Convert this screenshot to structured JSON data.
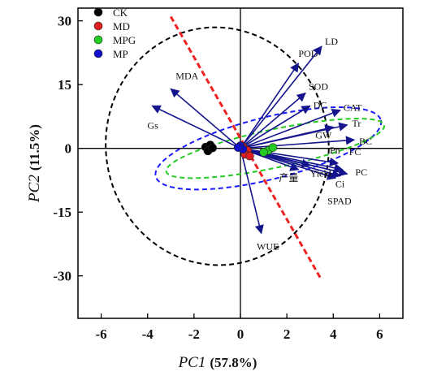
{
  "chart_data": {
    "type": "scatter",
    "subtype": "PCA biplot",
    "xlabel": "PC1",
    "xlabel_pct": "(57.8%)",
    "ylabel": "PC2",
    "ylabel_pct": "(11.5%)",
    "xlim": [
      -7,
      7
    ],
    "ylim": [
      -40,
      33
    ],
    "xticks": [
      -6,
      -4,
      -2,
      0,
      2,
      4,
      6
    ],
    "yticks": [
      30,
      15,
      0,
      -15,
      -30
    ],
    "legend_position": "top-left",
    "series": [
      {
        "name": "CK",
        "color": "#000000",
        "points": [
          [
            -1.5,
            0.3
          ],
          [
            -1.3,
            0.8
          ],
          [
            -1.4,
            -0.6
          ],
          [
            -1.2,
            0.1
          ]
        ]
      },
      {
        "name": "MD",
        "color": "#e02020",
        "points": [
          [
            0.1,
            0.4
          ],
          [
            0.3,
            -0.5
          ],
          [
            0.2,
            -1.4
          ],
          [
            0.4,
            -1.8
          ]
        ]
      },
      {
        "name": "MPG",
        "color": "#22cc22",
        "points": [
          [
            1.2,
            -0.5
          ],
          [
            1.4,
            0.2
          ],
          [
            1.0,
            -0.9
          ]
        ]
      },
      {
        "name": "MP",
        "color": "#1010cc",
        "points": [
          [
            0.0,
            0.6
          ],
          [
            0.1,
            -0.2
          ],
          [
            -0.1,
            0.2
          ]
        ]
      }
    ],
    "vectors": [
      {
        "name": "POD",
        "x": 2.5,
        "y": 20
      },
      {
        "name": "LD",
        "x": 3.5,
        "y": 24
      },
      {
        "name": "SOD",
        "x": 2.8,
        "y": 13
      },
      {
        "name": "DC",
        "x": 3.0,
        "y": 10
      },
      {
        "name": "CAT",
        "x": 4.3,
        "y": 9
      },
      {
        "name": "Tr",
        "x": 4.6,
        "y": 5.5
      },
      {
        "name": "GW",
        "x": 4.0,
        "y": 5
      },
      {
        "name": "BC",
        "x": 4.9,
        "y": 2
      },
      {
        "name": "Pn",
        "x": 4.2,
        "y": -3.5
      },
      {
        "name": "FC",
        "x": 4.4,
        "y": -5
      },
      {
        "name": "PC",
        "x": 4.6,
        "y": -6
      },
      {
        "name": "Ci",
        "x": 4.3,
        "y": -6.5
      },
      {
        "name": "SPAD",
        "x": 4.1,
        "y": -7
      },
      {
        "name": "Yield",
        "x": 3.0,
        "y": -4
      },
      {
        "name": "产量",
        "x": 2.5,
        "y": -5
      },
      {
        "name": "WUE",
        "x": 0.9,
        "y": -20
      },
      {
        "name": "MDA",
        "x": -3.0,
        "y": 14
      },
      {
        "name": "Gs",
        "x": -3.8,
        "y": 10
      }
    ],
    "ellipses": [
      {
        "group": "CK",
        "color": "#000000",
        "cx": -1.0,
        "cy": 0.5,
        "rx": 4.8,
        "ry": 28,
        "angle": -7
      },
      {
        "group": "MD",
        "color": "#1a1aff",
        "cx": 1.2,
        "cy": 0.0,
        "rx": 5.0,
        "ry": 7.3,
        "angle": -14
      },
      {
        "group": "MPG",
        "color": "#22cc22",
        "cx": 1.5,
        "cy": 0.0,
        "rx": 4.8,
        "ry": 4.5,
        "angle": -12
      }
    ],
    "divider_line": {
      "color": "#ee2222",
      "from": [
        -3.0,
        31
      ],
      "to": [
        3.5,
        -31
      ]
    }
  }
}
